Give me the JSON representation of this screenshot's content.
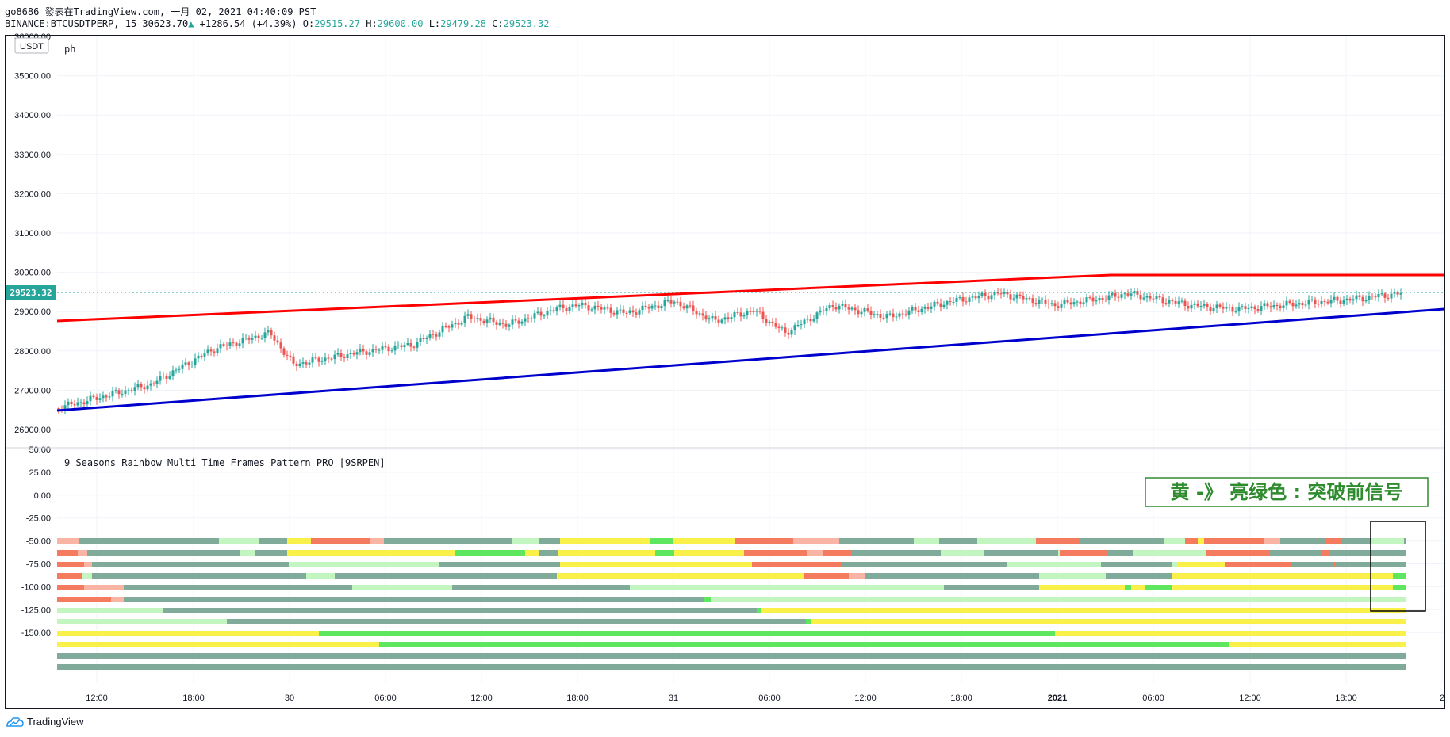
{
  "header": {
    "line1": "go8686 發表在TradingView.com, 一月 02, 2021 04:40:09 PST",
    "symbol": "BINANCE:BTCUSDTPERP, 15",
    "last_price": "30623.70",
    "change_arrow": "▲",
    "change": "+1286.54 (+4.39%)",
    "o_label": "O:",
    "o_value": "29515.27",
    "h_label": "H:",
    "h_value": "29600.00",
    "l_label": "L:",
    "l_value": "29479.28",
    "c_label": "C:",
    "c_value": "29523.32"
  },
  "main_pane": {
    "currency_badge": "USDT",
    "label": "ph",
    "current_price": "29523.32",
    "y_ticks": [
      "36000.00",
      "35000.00",
      "34000.00",
      "33000.00",
      "32000.00",
      "31000.00",
      "30000.00",
      "29000.00",
      "28000.00",
      "27000.00",
      "26000.00"
    ]
  },
  "indicator_pane": {
    "title": "9 Seasons Rainbow Multi Time Frames Pattern PRO [9SRPEN]",
    "y_ticks": [
      "50.00",
      "25.00",
      "0.00",
      "-25.00",
      "-50.00",
      "-75.00",
      "-100.00",
      "-125.00",
      "-150.00"
    ],
    "annotation": "黄 -》 亮绿色 : 突破前信号"
  },
  "x_axis": {
    "labels": [
      "12:00",
      "18:00",
      "30",
      "06:00",
      "12:00",
      "18:00",
      "31",
      "06:00",
      "12:00",
      "18:00",
      "2021",
      "06:00",
      "12:00",
      "18:00",
      "2"
    ]
  },
  "footer": {
    "brand": "TradingView"
  },
  "colors": {
    "up": "#26a69a",
    "down": "#ef5350",
    "resistance": "#ff0000",
    "support": "#0000cc",
    "badge_bg": "#26a69a",
    "annotation": "#2e8b2e"
  }
}
